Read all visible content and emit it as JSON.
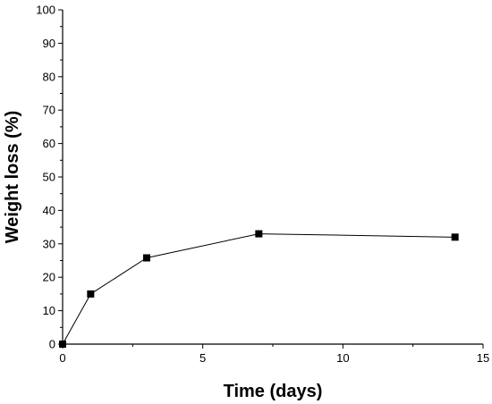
{
  "chart_data": {
    "type": "line",
    "xlabel": "Time (days)",
    "ylabel": "Weight loss (%)",
    "xlim": [
      0,
      15
    ],
    "ylim": [
      0,
      100
    ],
    "x_ticks": [
      0,
      5,
      10,
      15
    ],
    "y_ticks": [
      0,
      10,
      20,
      30,
      40,
      50,
      60,
      70,
      80,
      90,
      100
    ],
    "grid": false,
    "marker": "square",
    "series": [
      {
        "x": [
          0,
          1,
          3,
          7,
          14
        ],
        "values": [
          0,
          15,
          25.8,
          33,
          32
        ]
      }
    ],
    "colors": {
      "line": "#000000",
      "marker": "#000000",
      "axis": "#000000"
    }
  }
}
